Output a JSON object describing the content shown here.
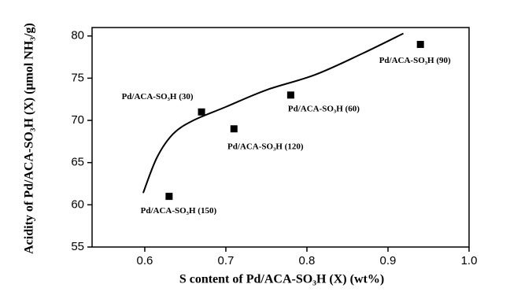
{
  "chart_data": {
    "type": "scatter",
    "x_label": "S content of Pd/ACA-SO₃H (X) (wt%)",
    "y_label": "Acidity of Pd/ACA-SO₃H (X) (μmol NH₃/g)",
    "x": [
      0.63,
      0.67,
      0.71,
      0.78,
      0.94
    ],
    "values": [
      61,
      71,
      69,
      73,
      79
    ],
    "point_labels": [
      "Pd/ACA-SO₃H (150)",
      "Pd/ACA-SO₃H (30)",
      "Pd/ACA-SO₃H (120)",
      "Pd/ACA-SO₃H (60)",
      "Pd/ACA-SO₃H (90)"
    ],
    "color": "#000000",
    "fit": {
      "x": [
        0.598,
        0.615,
        0.635,
        0.66,
        0.7,
        0.75,
        0.81,
        0.868,
        0.919
      ],
      "values": [
        61.4,
        65.6,
        68.4,
        70.0,
        71.6,
        73.6,
        75.4,
        77.9,
        80.3
      ]
    },
    "xlim": [
      0.535,
      1.0
    ],
    "xticks": [
      0.6,
      0.7,
      0.8,
      0.9,
      {
        "value": 1.0,
        "label": "1.0"
      }
    ],
    "ylim": [
      55,
      81
    ],
    "yticks": [
      55,
      60,
      65,
      70,
      75,
      80
    ]
  }
}
